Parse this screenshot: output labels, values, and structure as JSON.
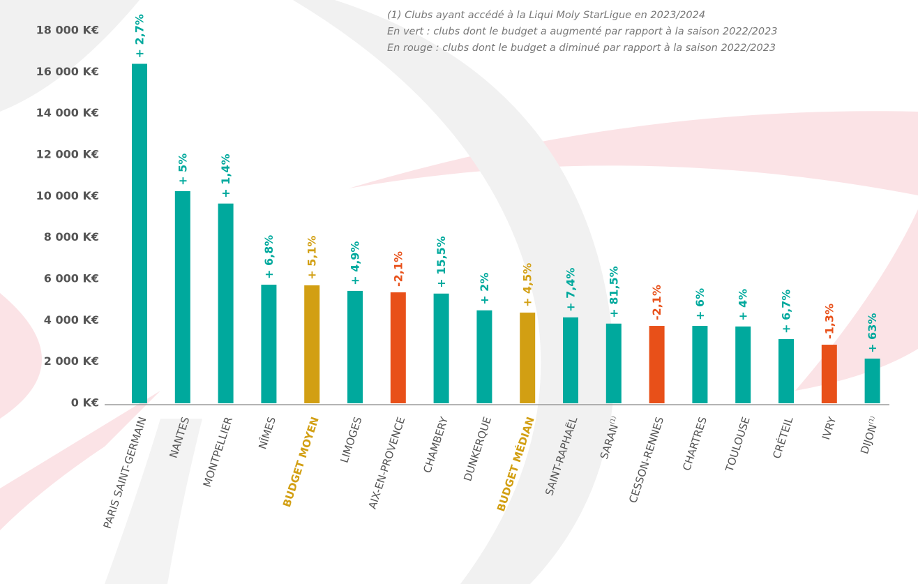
{
  "chart_data": {
    "type": "bar",
    "notes": [
      "(1) Clubs ayant accédé à la Liqui Moly StarLigue en 2023/2024",
      "En vert : clubs dont le budget a augmenté par rapport à la saison 2022/2023",
      "En rouge : clubs dont le budget a diminué par rapport à la saison 2022/2023"
    ],
    "categories": [
      "PARIS SAINT-GERMAIN",
      "NANTES",
      "MONTPELLIER",
      "NÎMES",
      "BUDGET MOYEN",
      "LIMOGES",
      "AIX-EN-PROVENCE",
      "CHAMBERY",
      "DUNKERQUE",
      "BUDGET MÉDIAN",
      "SAINT-RAPHAËL",
      "SARAN",
      "CESSON-RENNES",
      "CHARTRES",
      "TOULOUSE",
      "CRÉTEIL",
      "IVRY",
      "DIJON"
    ],
    "footnote_refs": [
      null,
      null,
      null,
      null,
      null,
      null,
      null,
      null,
      null,
      null,
      null,
      "(1)",
      null,
      null,
      null,
      null,
      null,
      "(1)"
    ],
    "values": [
      16400,
      10250,
      9650,
      5730,
      5700,
      5430,
      5360,
      5300,
      4490,
      4380,
      4150,
      3850,
      3740,
      3740,
      3710,
      3100,
      2830,
      2160
    ],
    "change_labels": [
      "+ 2,7%",
      "+ 5%",
      "+ 1,4%",
      "+ 6,8%",
      "+ 5,1%",
      "+ 4,9%",
      "-2,1%",
      "+ 15,5%",
      "+ 2%",
      "+ 4,5%",
      "+ 7,4%",
      "+ 81,5%",
      "-2,1%",
      "+ 6%",
      "+ 4%",
      "+ 6,7%",
      "-1,3%",
      "+ 63%"
    ],
    "colors": [
      "#00a99d",
      "#00a99d",
      "#00a99d",
      "#00a99d",
      "#d29f13",
      "#00a99d",
      "#e85019",
      "#00a99d",
      "#00a99d",
      "#d29f13",
      "#00a99d",
      "#00a99d",
      "#e85019",
      "#00a99d",
      "#00a99d",
      "#00a99d",
      "#e85019",
      "#00a99d"
    ],
    "ylim": [
      0,
      18000
    ],
    "yticks": [
      {
        "value": 0,
        "label": "0 K€"
      },
      {
        "value": 2000,
        "label": "2 000 K€"
      },
      {
        "value": 4000,
        "label": "4 000 K€"
      },
      {
        "value": 6000,
        "label": "6 000 K€"
      },
      {
        "value": 8000,
        "label": "8 000 K€"
      },
      {
        "value": 10000,
        "label": "10 000 K€"
      },
      {
        "value": 12000,
        "label": "12 000 K€"
      },
      {
        "value": 14000,
        "label": "14 000 K€"
      },
      {
        "value": 16000,
        "label": "16 000 K€"
      },
      {
        "value": 18000,
        "label": "18 000 K€"
      }
    ],
    "grid": false
  }
}
